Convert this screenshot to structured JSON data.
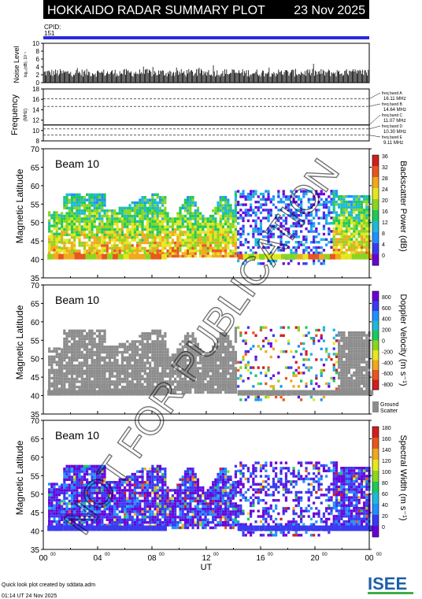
{
  "header": {
    "title": "HOKKAIDO RADAR SUMMARY PLOT",
    "date": "23 Nov 2025",
    "cpid_label": "CPID:",
    "cpid_value": "151"
  },
  "colors": {
    "cpid_bar": "#2a2ae0",
    "ground_scatter": "#8c8c8c",
    "power_scale": [
      "#6a00d8",
      "#3a3af0",
      "#1e90ff",
      "#1fb8d8",
      "#1ec85a",
      "#8ad61e",
      "#e6e61e",
      "#f0a81e",
      "#e8561e",
      "#d01e1e"
    ],
    "velocity_scale": [
      "#d01e1e",
      "#e8561e",
      "#f0a81e",
      "#e6e61e",
      "#8ad61e",
      "#1ec85a",
      "#1fb8d8",
      "#1e90ff",
      "#3a3af0",
      "#6a00d8"
    ],
    "width_scale": [
      "#6a00d8",
      "#3a3af0",
      "#1e90ff",
      "#1fb8d8",
      "#1ec85a",
      "#8ad61e",
      "#e6e61e",
      "#f0a81e",
      "#e8561e",
      "#d01e1e"
    ]
  },
  "panels": {
    "power": {
      "beam": "Beam 10",
      "cbar_label": "Backscatter Power (dB)",
      "cbar_ticks": [
        "36",
        "32",
        "28",
        "24",
        "20",
        "16",
        "12",
        "8",
        "4",
        "0"
      ]
    },
    "velocity": {
      "beam": "Beam 10",
      "cbar_label": "Doppler Velocity (m s⁻¹)",
      "cbar_ticks": [
        "800",
        "600",
        "400",
        "200",
        "0",
        "-200",
        "-400",
        "-600",
        "-800"
      ],
      "gs_label_1": "Ground",
      "gs_label_2": "Scatter"
    },
    "width": {
      "beam": "Beam 10",
      "cbar_label": "Spectral Width (m s⁻¹)",
      "cbar_ticks": [
        "180",
        "160",
        "140",
        "120",
        "100",
        "80",
        "60",
        "40",
        "20",
        "0"
      ]
    }
  },
  "freq_bands": [
    {
      "name": "freq band A",
      "value": "16.11 MHz"
    },
    {
      "name": "freq band B",
      "value": "14.64 MHz"
    },
    {
      "name": "freq band C",
      "value": "11.07 MHz"
    },
    {
      "name": "freq band D",
      "value": "10.30 MHz"
    },
    {
      "name": "freq band E",
      "value": "9.11 MHz"
    }
  ],
  "footer": {
    "credit": "Quick look plot created by sddata.adm",
    "timestamp": "01:14 UT 24 Nov 2025",
    "logo": "ISEE"
  },
  "watermark": "NOT FOR PUBLICATION",
  "chart_data": [
    {
      "type": "bar",
      "name": "noise",
      "ylabel": "Noise Level",
      "ylabel_sub": "log₁₀(dB), 10⁻¹",
      "ylim": [
        0,
        10
      ],
      "yticks": [
        0,
        2,
        4,
        6,
        8,
        10
      ],
      "x_range_hours": [
        0,
        24
      ],
      "typical_value": 2.5
    },
    {
      "type": "line",
      "name": "frequency",
      "ylabel": "Frequency",
      "ylabel_unit": "(MHz)",
      "ylim": [
        8,
        18
      ],
      "yticks": [
        8,
        10,
        12,
        14,
        16,
        18
      ],
      "band_lines": [
        16.11,
        14.64,
        11.07,
        10.3,
        9.11
      ],
      "operating_band": 11.07
    },
    {
      "type": "heatmap",
      "name": "power",
      "ylabel": "Magnetic Latitude",
      "ylim": [
        35,
        70
      ],
      "yticks": [
        35,
        40,
        45,
        50,
        55,
        60,
        65,
        70
      ],
      "zlim": [
        0,
        36
      ]
    },
    {
      "type": "heatmap",
      "name": "velocity",
      "ylabel": "Magnetic Latitude",
      "ylim": [
        35,
        70
      ],
      "yticks": [
        35,
        40,
        45,
        50,
        55,
        60,
        65,
        70
      ],
      "zlim": [
        -800,
        800
      ]
    },
    {
      "type": "heatmap",
      "name": "width",
      "ylabel": "Magnetic Latitude",
      "ylim": [
        35,
        70
      ],
      "yticks": [
        35,
        40,
        45,
        50,
        55,
        60,
        65,
        70
      ],
      "zlim": [
        0,
        180
      ]
    }
  ],
  "x_axis": {
    "label": "UT",
    "ticks": [
      "00",
      "04",
      "08",
      "12",
      "16",
      "20",
      "00"
    ],
    "tick_sup": "00",
    "range_hours": [
      0,
      24
    ]
  }
}
